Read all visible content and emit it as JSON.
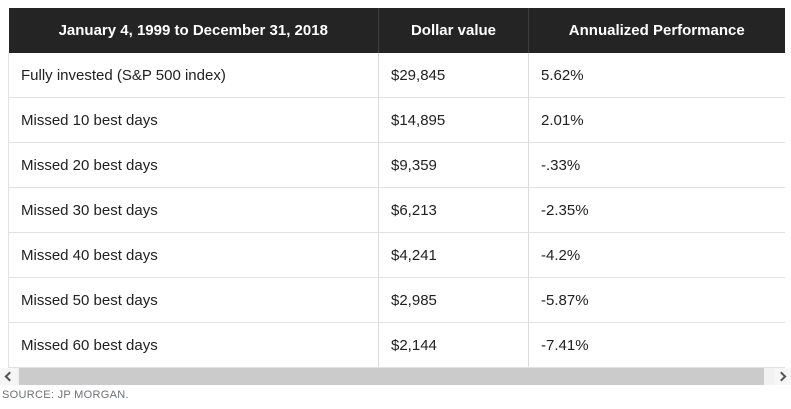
{
  "chart_data": {
    "type": "table",
    "title": "January 4, 1999 to December 31, 2018",
    "columns": [
      "January 4, 1999 to December 31, 2018",
      "Dollar value",
      "Annualized Performance"
    ],
    "rows": [
      [
        "Fully invested (S&P 500 index)",
        "$29,845",
        "5.62%"
      ],
      [
        "Missed 10 best days",
        "$14,895",
        "2.01%"
      ],
      [
        "Missed 20 best days",
        "$9,359",
        "-.33%"
      ],
      [
        "Missed 30 best days",
        "$6,213",
        "-2.35%"
      ],
      [
        "Missed 40 best days",
        "$4,241",
        "-4.2%"
      ],
      [
        "Missed 50 best days",
        "$2,985",
        "-5.87%"
      ],
      [
        "Missed 60 best days",
        "$2,144",
        "-7.41%"
      ]
    ],
    "source": "SOURCE: JP MORGAN."
  },
  "scrollbar": {
    "orientation": "horizontal",
    "left_icon": "chevron-left",
    "right_icon": "chevron-right"
  },
  "colors": {
    "header_bg": "#242424",
    "header_text": "#ffffff",
    "body_text": "#212121",
    "row_border": "#e2e2e2",
    "column_border": "#dcdcdc",
    "scroll_track": "#f2f2f2",
    "scroll_thumb": "#cbcbcb",
    "source_text": "#6e7072"
  }
}
